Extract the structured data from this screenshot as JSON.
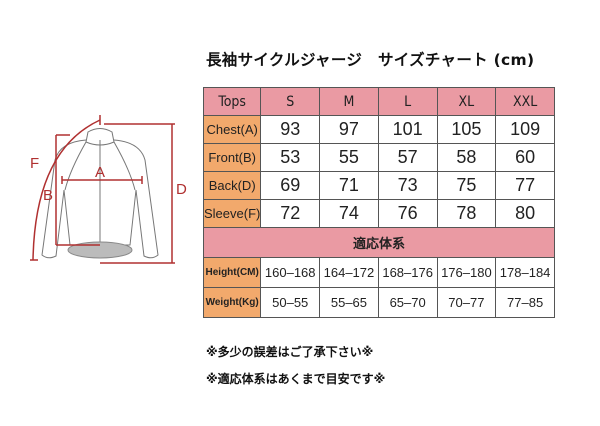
{
  "title": "長袖サイクルジャージ　サイズチャート (cm)",
  "diagram": {
    "labels": [
      "F",
      "A",
      "B",
      "D"
    ]
  },
  "table": {
    "header": [
      "Tops",
      "S",
      "M",
      "L",
      "XL",
      "XXL"
    ],
    "rows": [
      {
        "label": "Chest(A)",
        "values": [
          "93",
          "97",
          "101",
          "105",
          "109"
        ]
      },
      {
        "label": "Front(B)",
        "values": [
          "53",
          "55",
          "57",
          "58",
          "60"
        ]
      },
      {
        "label": "Back(D)",
        "values": [
          "69",
          "71",
          "73",
          "75",
          "77"
        ]
      },
      {
        "label": "Sleeve(F)",
        "values": [
          "72",
          "74",
          "76",
          "78",
          "80"
        ]
      }
    ],
    "band": "適応体系",
    "body_rows": [
      {
        "label": "Height(CM)",
        "values": [
          "160–168",
          "164–172",
          "168–176",
          "176–180",
          "178–184"
        ]
      },
      {
        "label": "Weight(Kg)",
        "values": [
          "50–55",
          "55–65",
          "65–70",
          "70–77",
          "77–85"
        ]
      }
    ]
  },
  "notes": [
    "※多少の誤差はご了承下さい※",
    "※適応体系はあくまで目安です※"
  ],
  "colors": {
    "header": "#ea9aa3",
    "label": "#f2a96c",
    "measure": "#b03030"
  }
}
